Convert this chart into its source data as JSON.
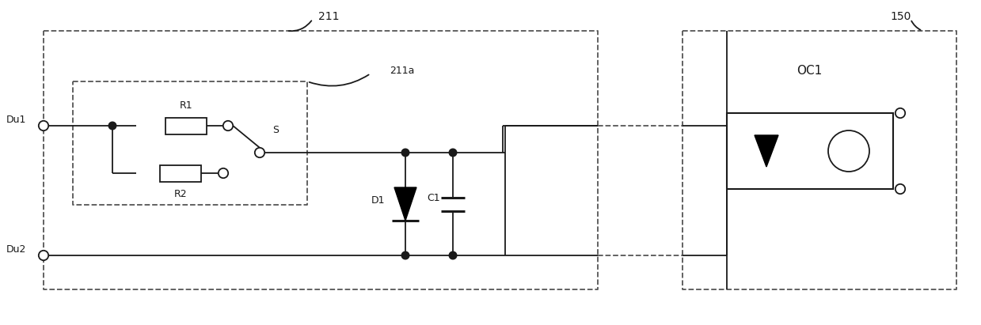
{
  "fig_width": 12.39,
  "fig_height": 4.11,
  "dpi": 100,
  "bg_color": "#ffffff",
  "line_color": "#1a1a1a",
  "label_211": "211",
  "label_150": "150",
  "label_211a": "211a",
  "label_Du1": "Du1",
  "label_Du2": "Du2",
  "label_R1": "R1",
  "label_R2": "R2",
  "label_S": "S",
  "label_D1": "D1",
  "label_C1": "C1",
  "label_OC1": "OC1",
  "lw": 1.3,
  "lw_thick": 2.2,
  "dash_color": "#555555"
}
